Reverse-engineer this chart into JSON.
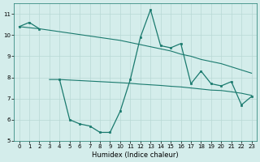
{
  "xlabel": "Humidex (Indice chaleur)",
  "x": [
    0,
    1,
    2,
    3,
    4,
    5,
    6,
    7,
    8,
    9,
    10,
    11,
    12,
    13,
    14,
    15,
    16,
    17,
    18,
    19,
    20,
    21,
    22,
    23
  ],
  "main_y": [
    10.4,
    10.6,
    10.3,
    null,
    7.9,
    6.0,
    5.8,
    5.7,
    5.4,
    5.4,
    6.4,
    7.9,
    9.9,
    11.2,
    9.5,
    9.4,
    9.6,
    7.7,
    8.3,
    7.7,
    7.6,
    7.8,
    6.7,
    7.1
  ],
  "trend1_x": [
    0,
    1,
    2,
    10,
    11,
    12,
    13,
    14,
    15,
    16,
    17,
    18,
    19,
    20,
    21,
    22,
    23
  ],
  "trend1_y": [
    10.4,
    10.35,
    10.3,
    9.75,
    9.65,
    9.55,
    9.45,
    9.35,
    9.25,
    9.1,
    9.0,
    8.85,
    8.75,
    8.65,
    8.5,
    8.35,
    8.2
  ],
  "trend2_x": [
    3,
    4,
    10,
    11,
    12,
    13,
    14,
    15,
    16,
    17,
    18,
    19,
    20,
    21,
    22,
    23
  ],
  "trend2_y": [
    7.9,
    7.9,
    7.75,
    7.72,
    7.68,
    7.65,
    7.62,
    7.58,
    7.55,
    7.5,
    7.45,
    7.4,
    7.38,
    7.32,
    7.25,
    7.15
  ],
  "ylim": [
    5,
    11.5
  ],
  "xlim": [
    -0.5,
    23.5
  ],
  "yticks": [
    5,
    6,
    7,
    8,
    9,
    10,
    11
  ],
  "xticks": [
    0,
    1,
    2,
    3,
    4,
    5,
    6,
    7,
    8,
    9,
    10,
    11,
    12,
    13,
    14,
    15,
    16,
    17,
    18,
    19,
    20,
    21,
    22,
    23
  ],
  "line_color": "#1a7a6e",
  "bg_color": "#d4edeb",
  "grid_color": "#b8d8d5"
}
